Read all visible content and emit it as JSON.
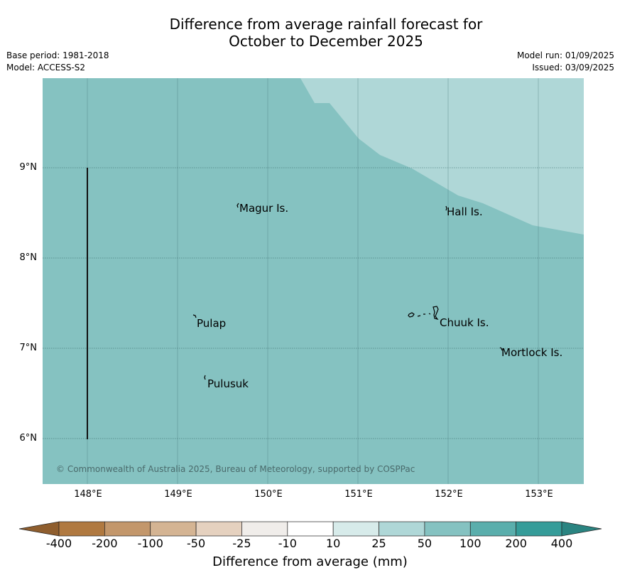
{
  "title_line1": "Difference from average rainfall forecast for",
  "title_line2": "October to December 2025",
  "meta": {
    "base_period": "Base period: 1981-2018",
    "model": "Model: ACCESS-S2",
    "model_run": "Model run: 01/09/2025",
    "issued": "Issued: 03/09/2025"
  },
  "map": {
    "lat_labels": [
      "9°N",
      "8°N",
      "7°N",
      "6°N"
    ],
    "lon_labels": [
      "148°E",
      "149°E",
      "150°E",
      "151°E",
      "152°E",
      "153°E"
    ],
    "places": [
      "Magur Is.",
      "Hall Is.",
      "Pulap",
      "Chuuk Is.",
      "Mortlock Is.",
      "Pulusuk"
    ],
    "copyright": "© Commonwealth of Australia 2025, Bureau of Meteorology, supported by COSPPac",
    "colors": {
      "base_fill": "#85c2c1",
      "upper_fill": "#afd7d7"
    }
  },
  "colorbar": {
    "labels": [
      "-400",
      "-200",
      "-100",
      "-50",
      "-25",
      "-10",
      "10",
      "25",
      "50",
      "100",
      "200",
      "400"
    ],
    "colors": [
      "#b07940",
      "#c3976b",
      "#d4b493",
      "#e5d1bf",
      "#f0edea",
      "#ffffff",
      "#d7ebea",
      "#afd7d7",
      "#85c2c1",
      "#5aaeac",
      "#359c99"
    ],
    "low_extend_color": "#8f5e2e",
    "high_extend_color": "#2a8481",
    "title": "Difference from average (mm)"
  }
}
